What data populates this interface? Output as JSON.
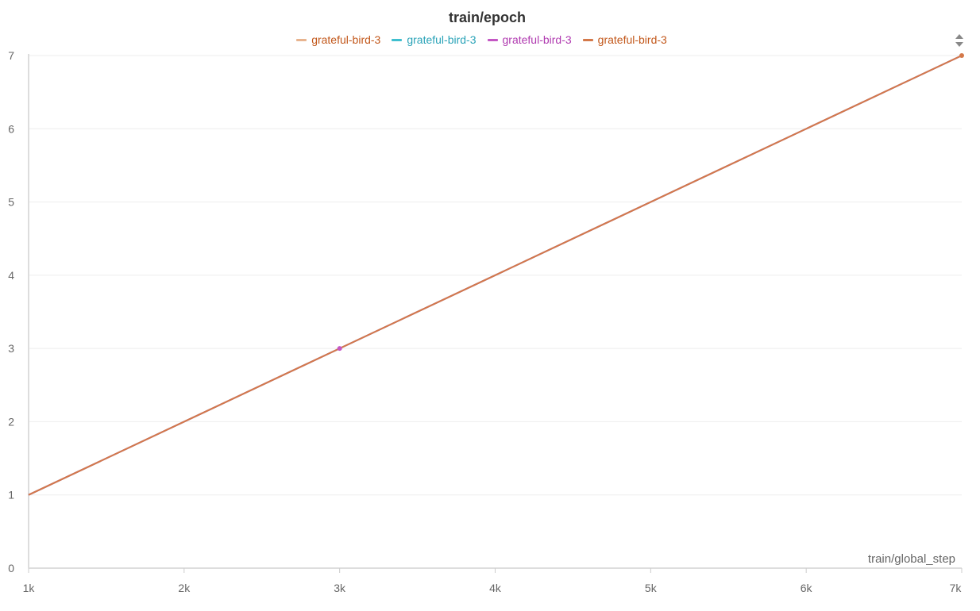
{
  "chart_data": {
    "type": "line",
    "title": "train/epoch",
    "xlabel": "train/global_step",
    "ylabel": "",
    "xlim": [
      1000,
      7000
    ],
    "ylim": [
      0,
      7
    ],
    "x_ticks": [
      1000,
      2000,
      3000,
      4000,
      5000,
      6000,
      7000
    ],
    "x_tick_labels": [
      "1k",
      "2k",
      "3k",
      "4k",
      "5k",
      "6k",
      "7k"
    ],
    "y_ticks": [
      0,
      1,
      2,
      3,
      4,
      5,
      6,
      7
    ],
    "y_tick_labels": [
      "0",
      "1",
      "2",
      "3",
      "4",
      "5",
      "6",
      "7"
    ],
    "grid": true,
    "legend_position": "top-center",
    "series": [
      {
        "name": "grateful-bird-3",
        "color": "#e8b48f",
        "text_color": "#c2571a",
        "x": [
          1000,
          3000,
          7000
        ],
        "y": [
          1,
          3,
          7
        ],
        "markers": []
      },
      {
        "name": "grateful-bird-3",
        "color": "#3fbfcf",
        "text_color": "#2aa3b8",
        "x": [
          1000,
          3000,
          7000
        ],
        "y": [
          1,
          3,
          7
        ],
        "markers": []
      },
      {
        "name": "grateful-bird-3",
        "color": "#c457c4",
        "text_color": "#b03ab0",
        "x": [
          1000,
          3000,
          7000
        ],
        "y": [
          1,
          3,
          7
        ],
        "markers": [
          3000
        ]
      },
      {
        "name": "grateful-bird-3",
        "color": "#d4794a",
        "text_color": "#c2571a",
        "x": [
          1000,
          3000,
          7000
        ],
        "y": [
          1,
          3,
          7
        ],
        "markers": [
          7000
        ]
      }
    ],
    "sort_icon": "sort-updown-icon"
  }
}
